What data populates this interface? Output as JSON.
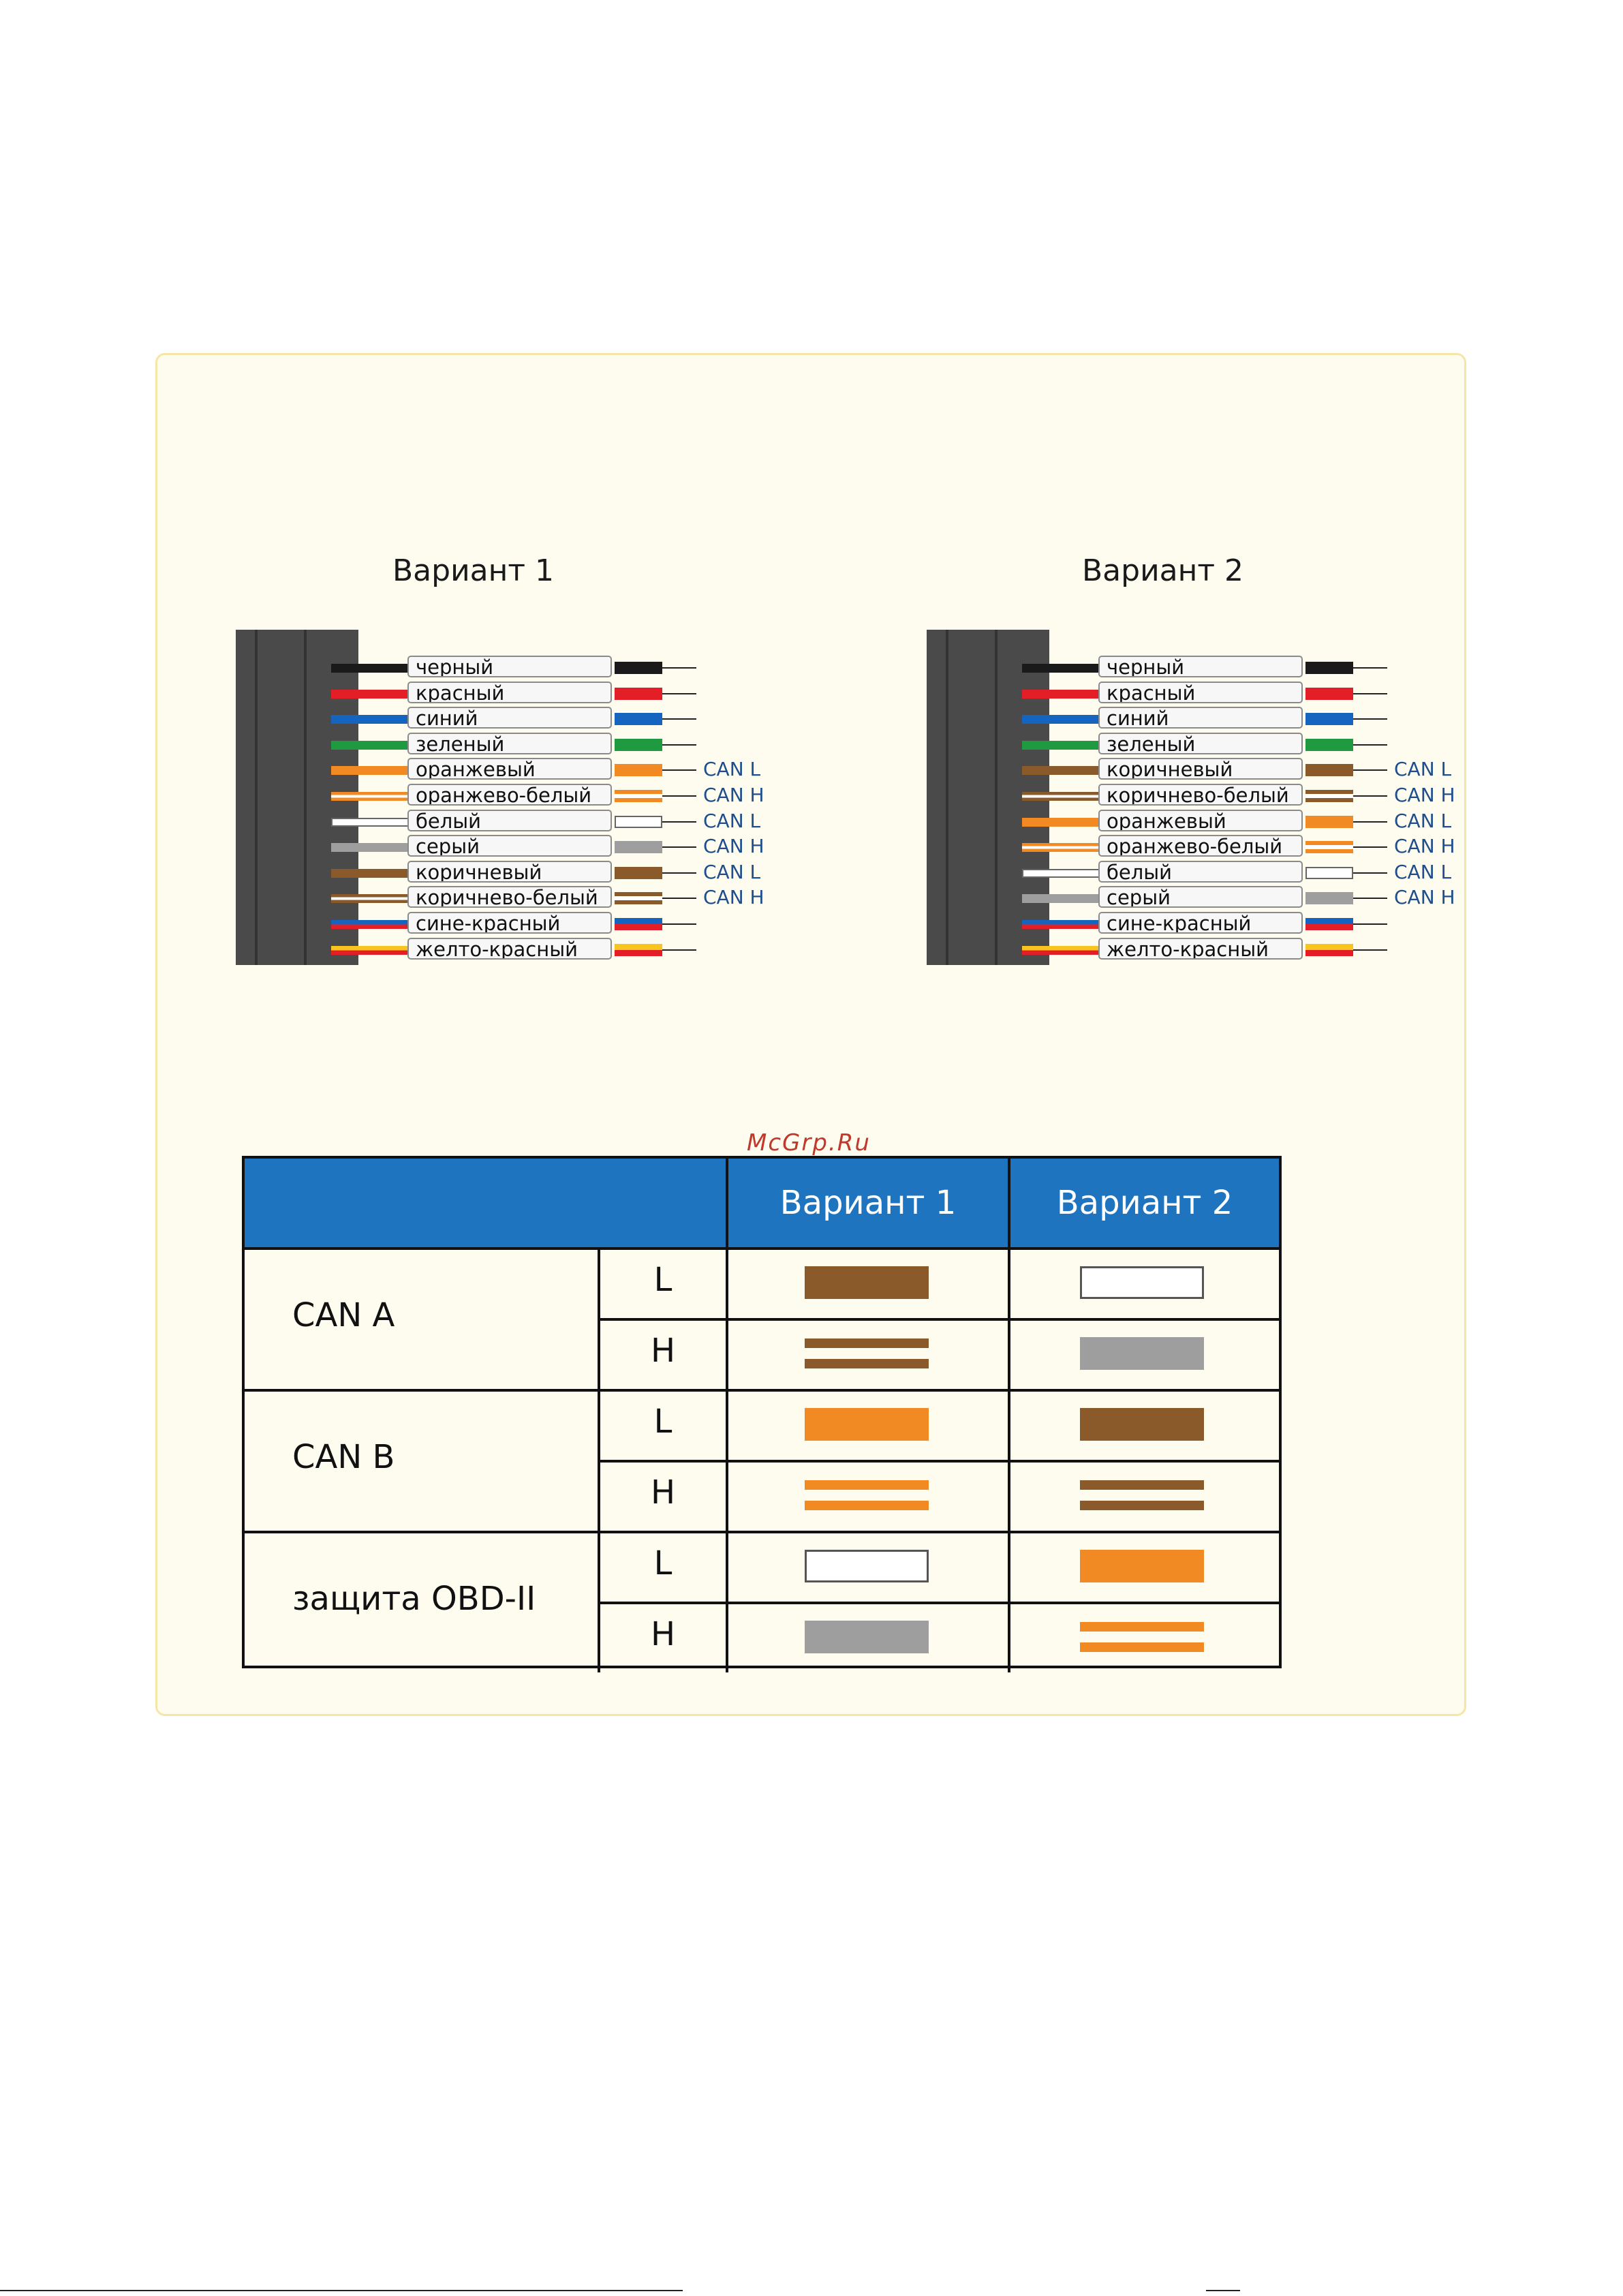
{
  "variant1": {
    "title": "Вариант 1",
    "wires": [
      {
        "label": "черный",
        "color": "#1a1a1a",
        "style": "solid",
        "can": ""
      },
      {
        "label": "красный",
        "color": "#e41e26",
        "style": "solid",
        "can": ""
      },
      {
        "label": "синий",
        "color": "#1565c0",
        "style": "solid",
        "can": ""
      },
      {
        "label": "зеленый",
        "color": "#1f9a40",
        "style": "solid",
        "can": ""
      },
      {
        "label": "оранжевый",
        "color": "#f28a24",
        "style": "solid",
        "can": "CAN L"
      },
      {
        "label": "оранжево-белый",
        "color": "#f28a24",
        "style": "striped",
        "can": "CAN H"
      },
      {
        "label": "белый",
        "color": "#ffffff",
        "style": "white",
        "can": "CAN L"
      },
      {
        "label": "серый",
        "color": "#9e9e9e",
        "style": "solid",
        "can": "CAN H"
      },
      {
        "label": "коричневый",
        "color": "#8a5a2b",
        "style": "solid",
        "can": "CAN L"
      },
      {
        "label": "коричнево-белый",
        "color": "#8a5a2b",
        "style": "striped",
        "can": "CAN H"
      },
      {
        "label": "сине-красный",
        "color": "#1565c0",
        "color2": "#e41e26",
        "style": "dual",
        "can": ""
      },
      {
        "label": "желто-красный",
        "color": "#f7c51e",
        "color2": "#e41e26",
        "style": "dual",
        "can": ""
      }
    ]
  },
  "variant2": {
    "title": "Вариант 2",
    "wires": [
      {
        "label": "черный",
        "color": "#1a1a1a",
        "style": "solid",
        "can": ""
      },
      {
        "label": "красный",
        "color": "#e41e26",
        "style": "solid",
        "can": ""
      },
      {
        "label": "синий",
        "color": "#1565c0",
        "style": "solid",
        "can": ""
      },
      {
        "label": "зеленый",
        "color": "#1f9a40",
        "style": "solid",
        "can": ""
      },
      {
        "label": "коричневый",
        "color": "#8a5a2b",
        "style": "solid",
        "can": "CAN L"
      },
      {
        "label": "коричнево-белый",
        "color": "#8a5a2b",
        "style": "striped",
        "can": "CAN H"
      },
      {
        "label": "оранжевый",
        "color": "#f28a24",
        "style": "solid",
        "can": "CAN L"
      },
      {
        "label": "оранжево-белый",
        "color": "#f28a24",
        "style": "striped",
        "can": "CAN H"
      },
      {
        "label": "белый",
        "color": "#ffffff",
        "style": "white",
        "can": "CAN L"
      },
      {
        "label": "серый",
        "color": "#9e9e9e",
        "style": "solid",
        "can": "CAN H"
      },
      {
        "label": "сине-красный",
        "color": "#1565c0",
        "color2": "#e41e26",
        "style": "dual",
        "can": ""
      },
      {
        "label": "желто-красный",
        "color": "#f7c51e",
        "color2": "#e41e26",
        "style": "dual",
        "can": ""
      }
    ]
  },
  "watermark": "McGrp.Ru",
  "table": {
    "header_variant1": "Вариант 1",
    "header_variant2": "Вариант 2",
    "groups": [
      {
        "name": "CAN A",
        "rows": [
          {
            "line": "L",
            "v1": {
              "color": "#8a5a2b",
              "style": "solid"
            },
            "v2": {
              "color": "#ffffff",
              "style": "white"
            }
          },
          {
            "line": "H",
            "v1": {
              "color": "#8a5a2b",
              "style": "striped"
            },
            "v2": {
              "color": "#9e9e9e",
              "style": "solid"
            }
          }
        ]
      },
      {
        "name": "CAN B",
        "rows": [
          {
            "line": "L",
            "v1": {
              "color": "#f28a24",
              "style": "solid"
            },
            "v2": {
              "color": "#8a5a2b",
              "style": "solid"
            }
          },
          {
            "line": "H",
            "v1": {
              "color": "#f28a24",
              "style": "striped"
            },
            "v2": {
              "color": "#8a5a2b",
              "style": "striped"
            }
          }
        ]
      },
      {
        "name": "защита OBD-II",
        "rows": [
          {
            "line": "L",
            "v1": {
              "color": "#ffffff",
              "style": "white"
            },
            "v2": {
              "color": "#f28a24",
              "style": "solid"
            }
          },
          {
            "line": "H",
            "v1": {
              "color": "#9e9e9e",
              "style": "solid"
            },
            "v2": {
              "color": "#f28a24",
              "style": "striped"
            }
          }
        ]
      }
    ]
  }
}
